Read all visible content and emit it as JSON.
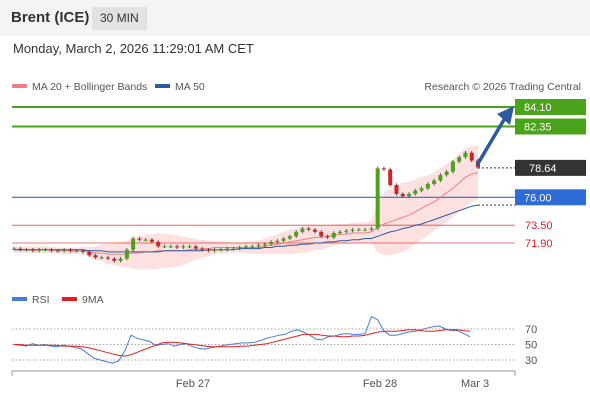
{
  "header": {
    "symbol": "Brent (ICE)",
    "timeframe": "30 MIN"
  },
  "datetime": "Monday, March 2, 2026 11:29:01 AM CET",
  "credit": "Research © 2026 Trading Central",
  "colors": {
    "resistance": "#4aa31a",
    "pivot": "#2d6bd6",
    "support": "#e02020",
    "ma20": "#f08080",
    "ma50": "#2c5aa0",
    "bollinger_fill": "#fde0e0",
    "up_candle": "#4aa31a",
    "down_candle": "#c62828",
    "rsi": "#4a7ad8",
    "rsi_ma": "#e02020",
    "arrow": "#2c5aa0"
  },
  "chart_data": [
    {
      "type": "line",
      "title": "",
      "legend": [
        {
          "label": "MA 20 + Bollinger Bands",
          "color": "#f08080"
        },
        {
          "label": "MA 50",
          "color": "#2c5aa0"
        }
      ],
      "legend_position": "top-left",
      "x_ticks": [
        "Feb 27",
        "Feb 28",
        "Mar 3"
      ],
      "ylim": [
        69.0,
        86.0
      ],
      "levels": [
        {
          "value": 84.1,
          "label": "84.10",
          "kind": "resistance"
        },
        {
          "value": 82.35,
          "label": "82.35",
          "kind": "resistance"
        },
        {
          "value": 78.64,
          "label": "78.64",
          "kind": "last"
        },
        {
          "value": 76.0,
          "label": "76.00",
          "kind": "pivot"
        },
        {
          "value": 73.5,
          "label": "73.50",
          "kind": "support"
        },
        {
          "value": 71.9,
          "label": "71.90",
          "kind": "support"
        }
      ],
      "close": [
        71.4,
        71.3,
        71.3,
        71.2,
        71.3,
        71.3,
        71.2,
        71.2,
        71.3,
        71.2,
        71.2,
        71.1,
        70.8,
        70.6,
        70.6,
        70.5,
        70.3,
        70.5,
        71.3,
        72.3,
        72.2,
        72.2,
        72.0,
        71.6,
        71.6,
        71.6,
        71.5,
        71.6,
        71.6,
        71.4,
        71.3,
        71.2,
        71.3,
        71.3,
        71.4,
        71.4,
        71.5,
        71.6,
        71.6,
        71.7,
        71.8,
        72.0,
        72.1,
        72.3,
        72.5,
        72.9,
        73.2,
        73.1,
        72.9,
        72.5,
        72.4,
        72.8,
        72.9,
        73.0,
        73.1,
        73.1,
        73.1,
        73.2,
        78.6,
        78.5,
        77.1,
        76.3,
        76.1,
        76.3,
        76.6,
        76.8,
        77.2,
        77.5,
        78.0,
        78.3,
        79.2,
        79.6,
        80.0,
        79.3,
        78.7
      ],
      "ma20": [
        71.3,
        71.3,
        71.3,
        71.3,
        71.3,
        71.3,
        71.3,
        71.2,
        71.2,
        71.2,
        71.2,
        71.2,
        71.1,
        71.0,
        71.0,
        70.9,
        70.9,
        70.9,
        70.9,
        71.0,
        71.0,
        71.1,
        71.1,
        71.2,
        71.2,
        71.2,
        71.2,
        71.2,
        71.3,
        71.3,
        71.4,
        71.4,
        71.5,
        71.5,
        71.5,
        71.5,
        71.5,
        71.5,
        71.5,
        71.5,
        71.6,
        71.7,
        71.8,
        71.9,
        72.0,
        72.1,
        72.2,
        72.3,
        72.4,
        72.4,
        72.5,
        72.6,
        72.7,
        72.7,
        72.8,
        72.8,
        72.8,
        72.9,
        73.3,
        73.6,
        73.8,
        74.0,
        74.2,
        74.4,
        74.7,
        75.0,
        75.3,
        75.6,
        76.0,
        76.4,
        76.8,
        77.3,
        77.8,
        78.1,
        78.2
      ],
      "ma50": [
        71.3,
        71.3,
        71.3,
        71.3,
        71.3,
        71.3,
        71.3,
        71.3,
        71.3,
        71.3,
        71.3,
        71.3,
        71.2,
        71.2,
        71.2,
        71.1,
        71.1,
        71.1,
        71.1,
        71.1,
        71.1,
        71.1,
        71.1,
        71.1,
        71.2,
        71.2,
        71.2,
        71.2,
        71.2,
        71.2,
        71.2,
        71.3,
        71.3,
        71.3,
        71.3,
        71.3,
        71.4,
        71.4,
        71.4,
        71.4,
        71.5,
        71.5,
        71.6,
        71.6,
        71.7,
        71.7,
        71.8,
        71.8,
        71.9,
        71.9,
        72.0,
        72.0,
        72.1,
        72.1,
        72.2,
        72.2,
        72.3,
        72.3,
        72.5,
        72.7,
        72.9,
        73.0,
        73.2,
        73.3,
        73.5,
        73.6,
        73.8,
        74.0,
        74.2,
        74.4,
        74.6,
        74.8,
        75.0,
        75.2,
        75.3
      ],
      "bb_width": [
        0.3,
        0.3,
        0.3,
        0.3,
        0.3,
        0.3,
        0.3,
        0.3,
        0.3,
        0.3,
        0.3,
        0.35,
        0.45,
        0.6,
        0.75,
        0.9,
        1.0,
        1.1,
        1.2,
        1.4,
        1.5,
        1.55,
        1.6,
        1.6,
        1.55,
        1.5,
        1.4,
        1.3,
        1.1,
        0.9,
        0.8,
        0.7,
        0.6,
        0.55,
        0.5,
        0.45,
        0.45,
        0.5,
        0.55,
        0.6,
        0.7,
        0.8,
        0.9,
        1.0,
        1.1,
        1.15,
        1.2,
        1.2,
        1.15,
        1.1,
        1.0,
        0.95,
        0.9,
        0.9,
        0.9,
        0.9,
        0.95,
        1.0,
        2.2,
        2.8,
        3.0,
        3.1,
        3.1,
        3.0,
        2.9,
        2.8,
        2.7,
        2.6,
        2.6,
        2.6,
        2.6,
        2.6,
        2.6,
        2.5,
        2.4
      ]
    },
    {
      "type": "line",
      "title": "",
      "legend": [
        {
          "label": "RSI",
          "color": "#4a7ad8"
        },
        {
          "label": "9MA",
          "color": "#e02020"
        }
      ],
      "y_ticks": [
        70,
        50,
        30
      ],
      "ylim": [
        15,
        100
      ],
      "rsi": [
        50,
        49,
        48,
        51,
        49,
        50,
        48,
        47,
        49,
        48,
        46,
        44,
        38,
        32,
        30,
        28,
        26,
        29,
        42,
        62,
        58,
        56,
        54,
        49,
        50,
        51,
        48,
        50,
        51,
        47,
        45,
        44,
        46,
        47,
        49,
        50,
        51,
        52,
        52,
        53,
        55,
        58,
        60,
        62,
        63,
        67,
        69,
        66,
        62,
        57,
        56,
        60,
        61,
        63,
        64,
        63,
        63,
        64,
        86,
        82,
        68,
        62,
        62,
        64,
        66,
        67,
        69,
        71,
        73,
        74,
        70,
        68,
        68,
        64,
        60
      ],
      "rsi_9ma": [
        50,
        50,
        49,
        49,
        49,
        49,
        49,
        49,
        48,
        48,
        48,
        47,
        46,
        44,
        42,
        40,
        38,
        36,
        35,
        37,
        40,
        43,
        46,
        49,
        52,
        53,
        53,
        52,
        51,
        50,
        49,
        48,
        47,
        47,
        47,
        47,
        47,
        48,
        48,
        49,
        50,
        51,
        53,
        55,
        57,
        59,
        61,
        63,
        63,
        63,
        62,
        61,
        61,
        60,
        60,
        61,
        61,
        62,
        64,
        66,
        67,
        67,
        67,
        68,
        69,
        69,
        68,
        67,
        67,
        68,
        69,
        69,
        69,
        68,
        67
      ]
    }
  ],
  "rsi_legend": {
    "rsi": "RSI",
    "ma": "9MA"
  }
}
